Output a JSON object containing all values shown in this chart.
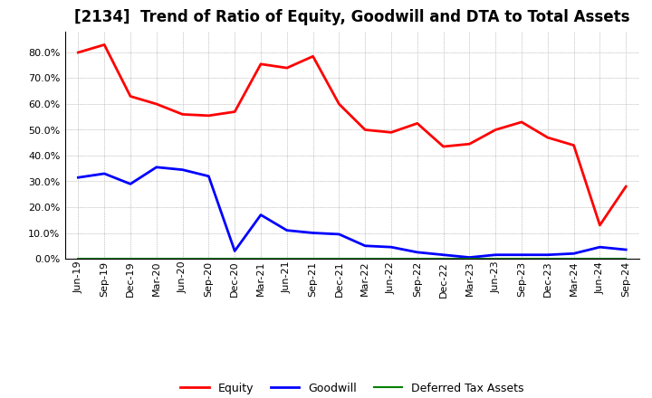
{
  "title": "[2134]  Trend of Ratio of Equity, Goodwill and DTA to Total Assets",
  "x_labels": [
    "Jun-19",
    "Sep-19",
    "Dec-19",
    "Mar-20",
    "Jun-20",
    "Sep-20",
    "Dec-20",
    "Mar-21",
    "Jun-21",
    "Sep-21",
    "Dec-21",
    "Mar-22",
    "Jun-22",
    "Sep-22",
    "Dec-22",
    "Mar-23",
    "Jun-23",
    "Sep-23",
    "Dec-23",
    "Mar-24",
    "Jun-24",
    "Sep-24"
  ],
  "equity": [
    80.0,
    83.0,
    63.0,
    60.0,
    56.0,
    55.5,
    57.0,
    75.5,
    74.0,
    78.5,
    60.0,
    50.0,
    49.0,
    52.5,
    43.5,
    44.5,
    50.0,
    53.0,
    47.0,
    44.0,
    13.0,
    28.0
  ],
  "goodwill": [
    31.5,
    33.0,
    29.0,
    35.5,
    34.5,
    32.0,
    3.0,
    17.0,
    11.0,
    10.0,
    9.5,
    5.0,
    4.5,
    2.5,
    1.5,
    0.5,
    1.5,
    1.5,
    1.5,
    2.0,
    4.5,
    3.5
  ],
  "dta": [
    0.0,
    0.0,
    0.0,
    0.0,
    0.0,
    0.0,
    0.0,
    0.0,
    0.0,
    0.0,
    0.0,
    0.0,
    0.0,
    0.0,
    0.0,
    0.0,
    0.0,
    0.0,
    0.0,
    0.0,
    0.0,
    0.0
  ],
  "equity_color": "#FF0000",
  "goodwill_color": "#0000FF",
  "dta_color": "#008000",
  "background_color": "#FFFFFF",
  "plot_bg_color": "#FFFFFF",
  "grid_color": "#999999",
  "ylim": [
    0,
    88
  ],
  "ytick_values": [
    0,
    10,
    20,
    30,
    40,
    50,
    60,
    70,
    80
  ],
  "ytick_labels": [
    "0.0%",
    "10.0%",
    "20.0%",
    "30.0%",
    "40.0%",
    "50.0%",
    "60.0%",
    "70.0%",
    "80.0%"
  ],
  "legend_labels": [
    "Equity",
    "Goodwill",
    "Deferred Tax Assets"
  ],
  "title_fontsize": 12,
  "tick_fontsize": 8,
  "legend_fontsize": 9,
  "linewidth": 2.0
}
